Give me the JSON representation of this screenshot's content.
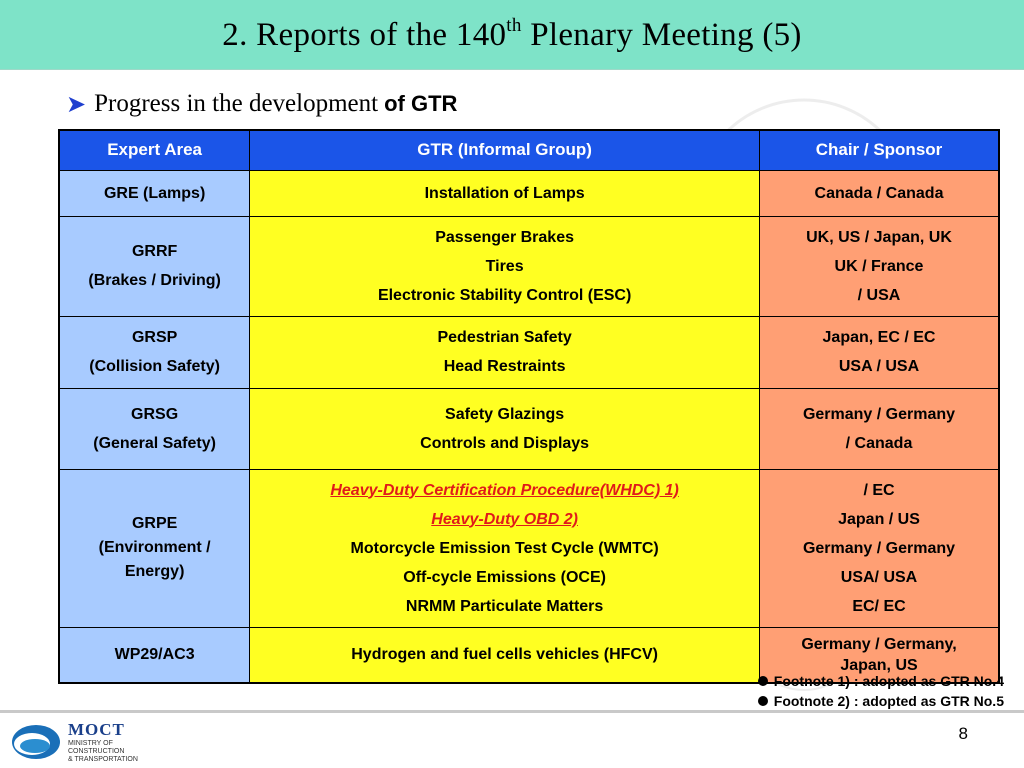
{
  "slide": {
    "title_main": "2. Reports of the 140",
    "title_sup": "th",
    "title_end": " Plenary Meeting (5)",
    "subtitle_plain": "Progress in the development",
    "subtitle_bold": "of GTR"
  },
  "table": {
    "headers": [
      "Expert Area",
      "GTR (Informal Group)",
      "Chair / Sponsor"
    ],
    "rows": [
      {
        "area": [
          "GRE (Lamps)"
        ],
        "gtr": [
          "Installation of Lamps"
        ],
        "chair": [
          "Canada / Canada"
        ]
      },
      {
        "area": [
          "GRRF",
          "(Brakes / Driving)"
        ],
        "gtr": [
          "Passenger Brakes",
          "Tires",
          "Electronic Stability Control (ESC)"
        ],
        "chair": [
          "UK, US / Japan, UK",
          "UK / France",
          "/ USA"
        ]
      },
      {
        "area": [
          "GRSP",
          "(Collision Safety)"
        ],
        "gtr": [
          "Pedestrian Safety",
          "Head Restraints"
        ],
        "chair": [
          "Japan, EC / EC",
          "USA / USA"
        ]
      },
      {
        "area": [
          "GRSG",
          "(General Safety)"
        ],
        "gtr": [
          "Safety Glazings",
          "Controls and Displays"
        ],
        "chair": [
          "Germany / Germany",
          "/ Canada"
        ]
      },
      {
        "area": [
          "GRPE",
          "(Environment /",
          "Energy)"
        ],
        "gtr": [
          "Heavy-Duty Certification Procedure(WHDC) 1)",
          "Heavy-Duty OBD 2)",
          "Motorcycle Emission Test Cycle (WMTC)",
          "Off-cycle Emissions (OCE)",
          "NRMM Particulate Matters"
        ],
        "chair": [
          "/ EC",
          "Japan / US",
          "Germany / Germany",
          "USA/ USA",
          "EC/ EC"
        ]
      },
      {
        "area": [
          "WP29/AC3"
        ],
        "gtr": [
          "Hydrogen and fuel cells vehicles (HFCV)"
        ],
        "chair": [
          "Germany / Germany,",
          "Japan, US"
        ]
      }
    ]
  },
  "footnotes": [
    "Footnote 1) : adopted as GTR No.4",
    "Footnote 2) : adopted as GTR No.5"
  ],
  "logo": {
    "name": "MOCT",
    "ministry": [
      "MINISTRY OF",
      "CONSTRUCTION",
      "& TRANSPORTATION"
    ]
  },
  "page_number": "8",
  "colors": {
    "title_bar": "#7ee3c8",
    "header": "#1b55e8",
    "area": "#a8cbff",
    "gtr": "#ffff22",
    "chair": "#ff9f74",
    "highlight_text": "#e01a1a"
  }
}
